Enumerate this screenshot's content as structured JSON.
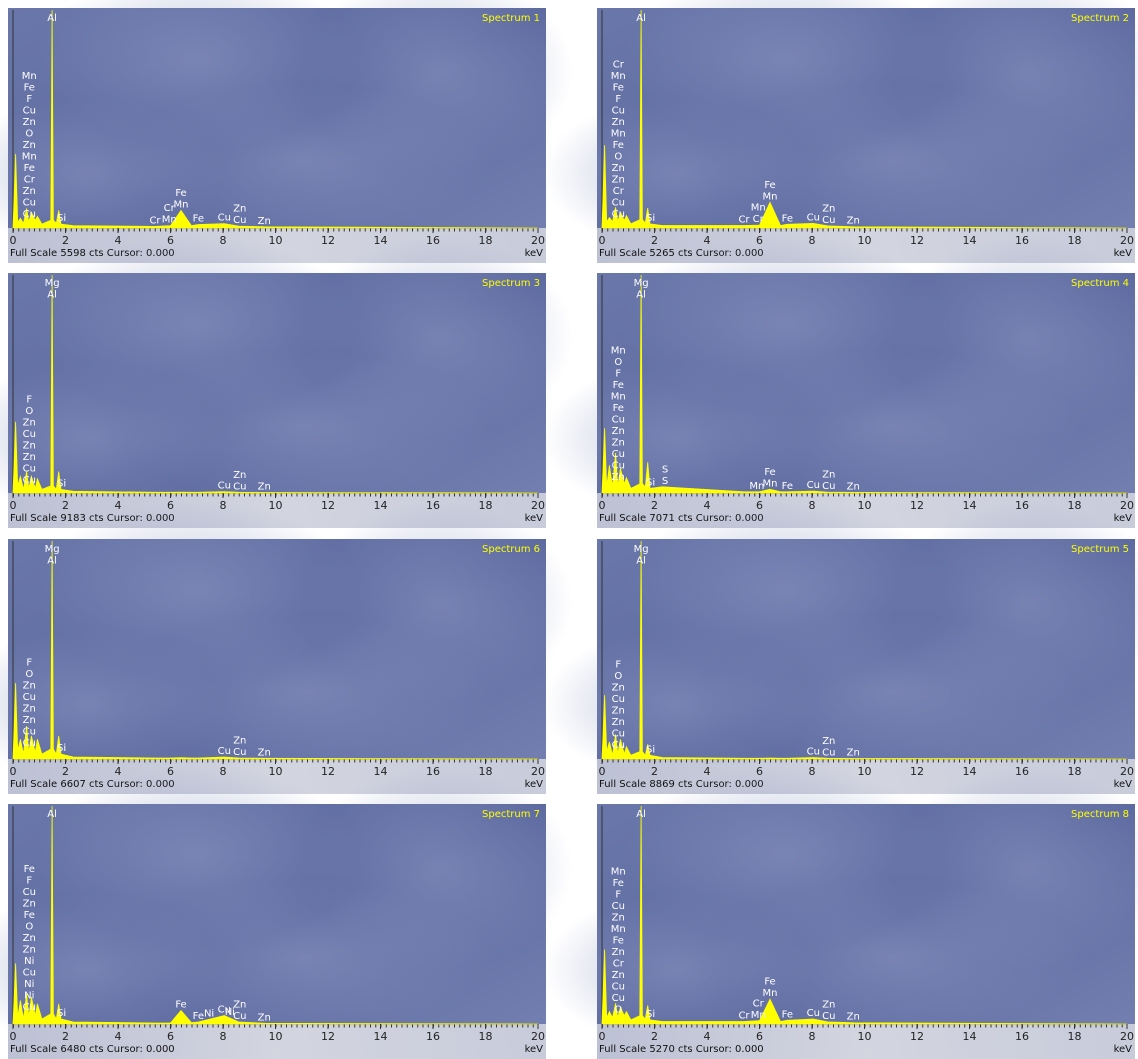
{
  "chart_data": [
    {
      "type": "area",
      "title": "Spectrum 1",
      "footer": "Full Scale 5598 cts Cursor: 0.000",
      "x_label": "keV",
      "color": "#ffff00",
      "xlim": [
        0,
        20
      ],
      "ylim": [
        0,
        5598
      ],
      "xticks": [
        0,
        2,
        4,
        6,
        8,
        10,
        12,
        14,
        16,
        18,
        20
      ],
      "x": [
        0,
        0.1,
        0.18,
        0.28,
        0.4,
        0.52,
        0.6,
        0.7,
        0.85,
        0.93,
        1.1,
        1.44,
        1.49,
        1.54,
        1.65,
        1.74,
        1.83,
        2.3,
        5.4,
        6.0,
        6.4,
        6.8,
        7.05,
        8.05,
        8.6,
        9.6,
        20
      ],
      "values": [
        0,
        1900,
        150,
        250,
        120,
        500,
        150,
        400,
        200,
        300,
        100,
        200,
        5598,
        200,
        120,
        450,
        100,
        60,
        40,
        60,
        450,
        60,
        90,
        110,
        50,
        30,
        0
      ],
      "annotations": [
        {
          "x": 0.62,
          "labels": [
            "Mn",
            "Fe",
            "F",
            "Cu",
            "Zn",
            "O",
            "Zn",
            "Mn",
            "Fe",
            "Cr",
            "Zn",
            "Cu",
            "Cu"
          ]
        },
        {
          "x": 1.49,
          "labels": [
            "Al"
          ]
        },
        {
          "x": 1.85,
          "labels": [
            "Si"
          ]
        },
        {
          "x": 6.4,
          "labels": [
            "Fe",
            "Mn"
          ]
        },
        {
          "x": 5.95,
          "labels": [
            "Cr",
            "Mn"
          ]
        },
        {
          "x": 5.41,
          "labels": [
            "Cr"
          ]
        },
        {
          "x": 7.06,
          "labels": [
            "Fe"
          ]
        },
        {
          "x": 8.05,
          "labels": [
            "Cu"
          ]
        },
        {
          "x": 8.64,
          "labels": [
            "Zn",
            "Cu"
          ]
        },
        {
          "x": 9.57,
          "labels": [
            "Zn"
          ]
        }
      ]
    },
    {
      "type": "area",
      "title": "Spectrum 2",
      "footer": "Full Scale 5265 cts Cursor: 0.000",
      "x_label": "keV",
      "color": "#ffff00",
      "xlim": [
        0,
        20
      ],
      "ylim": [
        0,
        5265
      ],
      "xticks": [
        0,
        2,
        4,
        6,
        8,
        10,
        12,
        14,
        16,
        18,
        20
      ],
      "x": [
        0,
        0.1,
        0.18,
        0.28,
        0.4,
        0.52,
        0.6,
        0.7,
        0.85,
        0.93,
        1.1,
        1.44,
        1.49,
        1.54,
        1.65,
        1.74,
        1.83,
        2.3,
        5.4,
        6.0,
        6.4,
        6.8,
        7.05,
        8.05,
        8.6,
        9.6,
        20
      ],
      "values": [
        0,
        2000,
        150,
        250,
        150,
        500,
        150,
        380,
        180,
        300,
        100,
        200,
        5265,
        200,
        120,
        480,
        100,
        60,
        60,
        70,
        620,
        60,
        90,
        110,
        50,
        30,
        0
      ],
      "annotations": [
        {
          "x": 0.62,
          "labels": [
            "Cr",
            "Mn",
            "Fe",
            "F",
            "Cu",
            "Zn",
            "Mn",
            "Fe",
            "O",
            "Zn",
            "Zn",
            "Cr",
            "Cu",
            "Cu"
          ]
        },
        {
          "x": 1.49,
          "labels": [
            "Al"
          ]
        },
        {
          "x": 1.85,
          "labels": [
            "Si"
          ]
        },
        {
          "x": 6.4,
          "labels": [
            "Fe",
            "Mn"
          ]
        },
        {
          "x": 5.95,
          "labels": [
            "Mn",
            "Cr"
          ]
        },
        {
          "x": 5.41,
          "labels": [
            "Cr"
          ]
        },
        {
          "x": 7.06,
          "labels": [
            "Fe"
          ]
        },
        {
          "x": 8.05,
          "labels": [
            "Cu"
          ]
        },
        {
          "x": 8.64,
          "labels": [
            "Zn",
            "Cu"
          ]
        },
        {
          "x": 9.57,
          "labels": [
            "Zn"
          ]
        }
      ]
    },
    {
      "type": "area",
      "title": "Spectrum 3",
      "footer": "Full Scale 9183 cts Cursor: 0.000",
      "x_label": "keV",
      "color": "#ffff00",
      "xlim": [
        0,
        20
      ],
      "ylim": [
        0,
        9183
      ],
      "xticks": [
        0,
        2,
        4,
        6,
        8,
        10,
        12,
        14,
        16,
        18,
        20
      ],
      "x": [
        0,
        0.1,
        0.18,
        0.28,
        0.4,
        0.52,
        0.6,
        0.7,
        0.85,
        0.93,
        1.1,
        1.44,
        1.49,
        1.54,
        1.65,
        1.74,
        1.83,
        2.3,
        5.4,
        6.0,
        6.4,
        6.8,
        7.05,
        8.05,
        8.6,
        9.6,
        20
      ],
      "values": [
        0,
        3000,
        300,
        700,
        150,
        900,
        200,
        700,
        200,
        600,
        150,
        300,
        9183,
        300,
        150,
        900,
        150,
        70,
        30,
        30,
        40,
        30,
        30,
        60,
        30,
        20,
        0
      ],
      "annotations": [
        {
          "x": 0.62,
          "labels": [
            "F",
            "O",
            "Zn",
            "Cu",
            "Zn",
            "Zn",
            "Cu",
            "Cu"
          ]
        },
        {
          "x": 1.49,
          "labels": [
            "Mg",
            "Al"
          ]
        },
        {
          "x": 1.85,
          "labels": [
            "Si"
          ]
        },
        {
          "x": 8.05,
          "labels": [
            "Cu"
          ]
        },
        {
          "x": 8.64,
          "labels": [
            "Zn",
            "Cu"
          ]
        },
        {
          "x": 9.57,
          "labels": [
            "Zn"
          ]
        }
      ]
    },
    {
      "type": "area",
      "title": "Spectrum 4",
      "footer": "Full Scale 7071 cts Cursor: 0.000",
      "x_label": "keV",
      "color": "#ffff00",
      "xlim": [
        0,
        20
      ],
      "ylim": [
        0,
        7071
      ],
      "xticks": [
        0,
        2,
        4,
        6,
        8,
        10,
        12,
        14,
        16,
        18,
        20
      ],
      "x": [
        0,
        0.1,
        0.18,
        0.28,
        0.4,
        0.52,
        0.6,
        0.7,
        0.85,
        0.93,
        1.1,
        1.44,
        1.49,
        1.54,
        1.65,
        1.74,
        1.83,
        2.3,
        5.4,
        6.0,
        6.4,
        6.8,
        7.05,
        8.05,
        8.6,
        9.6,
        20
      ],
      "values": [
        0,
        2100,
        200,
        900,
        200,
        1300,
        200,
        800,
        300,
        500,
        150,
        300,
        7071,
        300,
        200,
        1000,
        150,
        200,
        40,
        40,
        120,
        40,
        40,
        60,
        30,
        20,
        0
      ],
      "annotations": [
        {
          "x": 0.62,
          "labels": [
            "Mn",
            "O",
            "F",
            "Fe",
            "Mn",
            "Fe",
            "Cu",
            "Zn",
            "Zn",
            "Cu",
            "Cu",
            "Zn"
          ]
        },
        {
          "x": 1.49,
          "labels": [
            "Mg",
            "Al"
          ]
        },
        {
          "x": 1.85,
          "labels": [
            "Si"
          ]
        },
        {
          "x": 2.4,
          "labels": [
            "S",
            "S"
          ]
        },
        {
          "x": 6.4,
          "labels": [
            "Fe",
            "Mn"
          ]
        },
        {
          "x": 5.9,
          "labels": [
            "Mn"
          ]
        },
        {
          "x": 7.06,
          "labels": [
            "Fe"
          ]
        },
        {
          "x": 8.05,
          "labels": [
            "Cu"
          ]
        },
        {
          "x": 8.64,
          "labels": [
            "Zn",
            "Cu"
          ]
        },
        {
          "x": 9.57,
          "labels": [
            "Zn"
          ]
        }
      ]
    },
    {
      "type": "area",
      "title": "Spectrum 6",
      "footer": "Full Scale 6607 cts Cursor: 0.000",
      "x_label": "keV",
      "color": "#ffff00",
      "xlim": [
        0,
        20
      ],
      "ylim": [
        0,
        6607
      ],
      "xticks": [
        0,
        2,
        4,
        6,
        8,
        10,
        12,
        14,
        16,
        18,
        20
      ],
      "x": [
        0,
        0.1,
        0.18,
        0.28,
        0.4,
        0.52,
        0.6,
        0.7,
        0.85,
        0.93,
        1.1,
        1.44,
        1.49,
        1.54,
        1.65,
        1.74,
        1.83,
        2.3,
        5.4,
        6.0,
        6.4,
        6.8,
        7.05,
        8.05,
        8.6,
        9.6,
        20
      ],
      "values": [
        0,
        2300,
        250,
        600,
        150,
        1000,
        200,
        700,
        200,
        600,
        150,
        300,
        6607,
        300,
        150,
        700,
        150,
        60,
        30,
        30,
        40,
        30,
        30,
        60,
        30,
        20,
        0
      ],
      "annotations": [
        {
          "x": 0.62,
          "labels": [
            "F",
            "O",
            "Zn",
            "Cu",
            "Zn",
            "Zn",
            "Cu",
            "Cu"
          ]
        },
        {
          "x": 1.49,
          "labels": [
            "Mg",
            "Al"
          ]
        },
        {
          "x": 1.85,
          "labels": [
            "Si"
          ]
        },
        {
          "x": 8.05,
          "labels": [
            "Cu"
          ]
        },
        {
          "x": 8.64,
          "labels": [
            "Zn",
            "Cu"
          ]
        },
        {
          "x": 9.57,
          "labels": [
            "Zn"
          ]
        }
      ]
    },
    {
      "type": "area",
      "title": "Spectrum 5",
      "footer": "Full Scale 8869 cts Cursor: 0.000",
      "x_label": "keV",
      "color": "#ffff00",
      "xlim": [
        0,
        20
      ],
      "ylim": [
        0,
        8869
      ],
      "xticks": [
        0,
        2,
        4,
        6,
        8,
        10,
        12,
        14,
        16,
        18,
        20
      ],
      "x": [
        0,
        0.1,
        0.18,
        0.28,
        0.4,
        0.52,
        0.6,
        0.7,
        0.85,
        0.93,
        1.1,
        1.44,
        1.49,
        1.54,
        1.65,
        1.74,
        1.83,
        2.3,
        5.4,
        6.0,
        6.4,
        6.8,
        7.05,
        8.05,
        8.6,
        9.6,
        20
      ],
      "values": [
        0,
        2600,
        300,
        700,
        150,
        1000,
        200,
        800,
        200,
        500,
        150,
        300,
        8869,
        300,
        150,
        600,
        150,
        60,
        30,
        30,
        40,
        30,
        30,
        60,
        30,
        20,
        0
      ],
      "annotations": [
        {
          "x": 0.62,
          "labels": [
            "F",
            "O",
            "Zn",
            "Cu",
            "Zn",
            "Zn",
            "Cu",
            "Cu"
          ]
        },
        {
          "x": 1.49,
          "labels": [
            "Mg",
            "Al"
          ]
        },
        {
          "x": 1.85,
          "labels": [
            "Si"
          ]
        },
        {
          "x": 8.05,
          "labels": [
            "Cu"
          ]
        },
        {
          "x": 8.64,
          "labels": [
            "Zn",
            "Cu"
          ]
        },
        {
          "x": 9.57,
          "labels": [
            "Zn"
          ]
        }
      ]
    },
    {
      "type": "area",
      "title": "Spectrum 7",
      "footer": "Full Scale 6480 cts Cursor: 0.000",
      "x_label": "keV",
      "color": "#ffff00",
      "xlim": [
        0,
        20
      ],
      "ylim": [
        0,
        6480
      ],
      "xticks": [
        0,
        2,
        4,
        6,
        8,
        10,
        12,
        14,
        16,
        18,
        20
      ],
      "x": [
        0,
        0.1,
        0.18,
        0.28,
        0.4,
        0.52,
        0.6,
        0.7,
        0.85,
        0.93,
        1.1,
        1.44,
        1.49,
        1.54,
        1.65,
        1.74,
        1.83,
        2.3,
        5.4,
        6.0,
        6.4,
        6.8,
        7.05,
        8.05,
        8.6,
        9.6,
        20
      ],
      "values": [
        0,
        1800,
        200,
        700,
        150,
        900,
        200,
        800,
        250,
        600,
        150,
        300,
        6480,
        300,
        150,
        600,
        150,
        60,
        30,
        30,
        400,
        40,
        60,
        250,
        60,
        20,
        0
      ],
      "annotations": [
        {
          "x": 0.62,
          "labels": [
            "Fe",
            "F",
            "Cu",
            "Zn",
            "Fe",
            "O",
            "Zn",
            "Zn",
            "Ni",
            "Cu",
            "Ni",
            "Ni",
            "Cu"
          ]
        },
        {
          "x": 1.49,
          "labels": [
            "Al"
          ]
        },
        {
          "x": 1.85,
          "labels": [
            "Si"
          ]
        },
        {
          "x": 6.4,
          "labels": [
            "Fe"
          ]
        },
        {
          "x": 7.06,
          "labels": [
            "Fe"
          ]
        },
        {
          "x": 7.47,
          "labels": [
            "Ni"
          ]
        },
        {
          "x": 8.05,
          "labels": [
            "Cu"
          ]
        },
        {
          "x": 8.26,
          "labels": [
            "Ni"
          ]
        },
        {
          "x": 8.64,
          "labels": [
            "Zn",
            "Cu"
          ]
        },
        {
          "x": 9.57,
          "labels": [
            "Zn"
          ]
        }
      ]
    },
    {
      "type": "area",
      "title": "Spectrum 8",
      "footer": "Full Scale 5270 cts Cursor: 0.000",
      "x_label": "keV",
      "color": "#ffff00",
      "xlim": [
        0,
        20
      ],
      "ylim": [
        0,
        5270
      ],
      "xticks": [
        0,
        2,
        4,
        6,
        8,
        10,
        12,
        14,
        16,
        18,
        20
      ],
      "x": [
        0,
        0.1,
        0.18,
        0.28,
        0.4,
        0.52,
        0.6,
        0.7,
        0.85,
        0.93,
        1.1,
        1.44,
        1.49,
        1.54,
        1.65,
        1.74,
        1.83,
        2.3,
        5.4,
        6.0,
        6.4,
        6.8,
        7.05,
        8.05,
        8.6,
        9.6,
        20
      ],
      "values": [
        0,
        1800,
        150,
        300,
        150,
        500,
        150,
        400,
        200,
        300,
        100,
        200,
        5270,
        200,
        120,
        450,
        100,
        60,
        60,
        80,
        600,
        60,
        90,
        120,
        50,
        30,
        0
      ],
      "annotations": [
        {
          "x": 0.62,
          "labels": [
            "Mn",
            "Fe",
            "F",
            "Cu",
            "Zn",
            "Mn",
            "Fe",
            "Zn",
            "Cr",
            "Zn",
            "Cu",
            "Cu",
            "O"
          ]
        },
        {
          "x": 1.49,
          "labels": [
            "Al"
          ]
        },
        {
          "x": 1.85,
          "labels": [
            "Si"
          ]
        },
        {
          "x": 6.4,
          "labels": [
            "Fe",
            "Mn"
          ]
        },
        {
          "x": 5.95,
          "labels": [
            "Cr",
            "Mn"
          ]
        },
        {
          "x": 5.41,
          "labels": [
            "Cr"
          ]
        },
        {
          "x": 7.06,
          "labels": [
            "Fe"
          ]
        },
        {
          "x": 8.05,
          "labels": [
            "Cu"
          ]
        },
        {
          "x": 8.64,
          "labels": [
            "Zn",
            "Cu"
          ]
        },
        {
          "x": 9.57,
          "labels": [
            "Zn"
          ]
        }
      ]
    }
  ]
}
